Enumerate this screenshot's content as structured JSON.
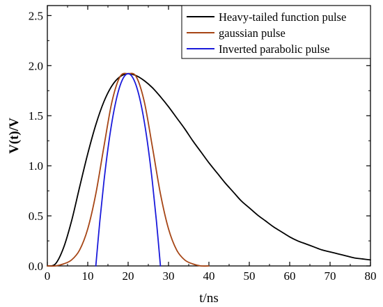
{
  "chart_data": {
    "type": "line",
    "xlabel": "t/ns",
    "ylabel": "V(t)/V",
    "xlim": [
      0,
      80
    ],
    "ylim": [
      0,
      2.6
    ],
    "x_ticks": [
      "0",
      "10",
      "20",
      "30",
      "40",
      "50",
      "60",
      "70",
      "80"
    ],
    "y_ticks": [
      "0.0",
      "0.5",
      "1.0",
      "1.5",
      "2.0",
      "2.5"
    ],
    "x_tick_values": [
      0,
      10,
      20,
      30,
      40,
      50,
      60,
      70,
      80
    ],
    "y_tick_values": [
      0,
      0.5,
      1.0,
      1.5,
      2.0,
      2.5
    ],
    "grid": false,
    "legend_position": "top-right",
    "series": [
      {
        "name": "Heavy-tailed function pulse",
        "color": "#000000",
        "x": [
          0,
          2,
          4,
          6,
          8,
          10,
          12,
          14,
          16,
          18,
          20,
          22,
          24,
          26,
          28,
          30,
          32,
          34,
          36,
          38,
          40,
          42,
          44,
          46,
          48,
          50,
          52,
          54,
          56,
          58,
          60,
          62,
          64,
          66,
          68,
          70,
          72,
          74,
          76,
          78,
          80
        ],
        "y": [
          0.0,
          0.02,
          0.18,
          0.45,
          0.79,
          1.12,
          1.41,
          1.64,
          1.8,
          1.89,
          1.92,
          1.9,
          1.85,
          1.78,
          1.69,
          1.59,
          1.48,
          1.37,
          1.25,
          1.14,
          1.03,
          0.93,
          0.83,
          0.74,
          0.65,
          0.58,
          0.51,
          0.45,
          0.39,
          0.34,
          0.29,
          0.25,
          0.22,
          0.19,
          0.16,
          0.14,
          0.12,
          0.1,
          0.08,
          0.07,
          0.06
        ]
      },
      {
        "name": "gaussian pulse",
        "color": "#a64515",
        "x": [
          0,
          2,
          4,
          6,
          8,
          10,
          12,
          14,
          16,
          18,
          20,
          22,
          24,
          26,
          28,
          30,
          32,
          34,
          36,
          38,
          40
        ],
        "y": [
          0.0,
          0.0,
          0.02,
          0.06,
          0.16,
          0.37,
          0.72,
          1.19,
          1.64,
          1.89,
          1.92,
          1.89,
          1.64,
          1.19,
          0.72,
          0.37,
          0.16,
          0.06,
          0.02,
          0.0,
          0.0
        ]
      },
      {
        "name": "Inverted parabolic pulse",
        "color": "#1a1adb",
        "x": [
          12,
          13,
          14,
          15,
          16,
          17,
          18,
          19,
          20,
          21,
          22,
          23,
          24,
          25,
          26,
          27,
          28
        ],
        "y": [
          0.0,
          0.45,
          0.84,
          1.17,
          1.44,
          1.65,
          1.8,
          1.89,
          1.92,
          1.89,
          1.8,
          1.65,
          1.44,
          1.17,
          0.84,
          0.45,
          0.0
        ]
      }
    ]
  }
}
